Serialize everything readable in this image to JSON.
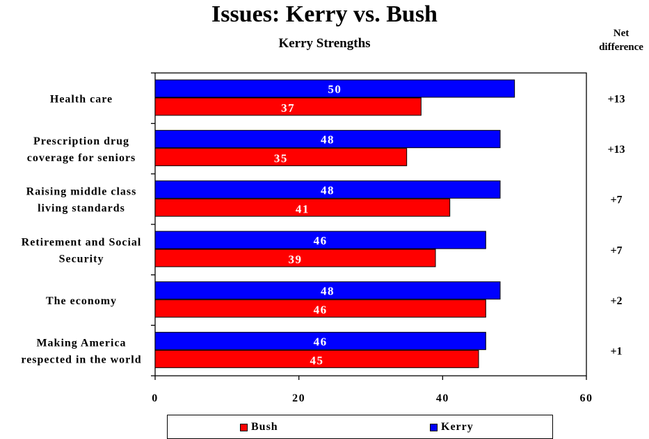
{
  "header": {
    "title": "Issues: Kerry vs. Bush",
    "subtitle": "Kerry Strengths",
    "net_header": "Net difference"
  },
  "chart_data": {
    "type": "bar",
    "orientation": "horizontal",
    "title": "Issues: Kerry vs. Bush",
    "subtitle": "Kerry Strengths",
    "categories": [
      [
        "Health care"
      ],
      [
        "Prescription drug",
        "coverage for seniors"
      ],
      [
        "Raising middle class",
        "living standards"
      ],
      [
        "Retirement and Social",
        "Security"
      ],
      [
        "The economy"
      ],
      [
        "Making America",
        "respected in the world"
      ]
    ],
    "series": [
      {
        "name": "Kerry",
        "color": "#0000ff",
        "values": [
          50,
          48,
          48,
          46,
          48,
          46
        ]
      },
      {
        "name": "Bush",
        "color": "#ff0000",
        "values": [
          37,
          35,
          41,
          39,
          46,
          45
        ]
      }
    ],
    "net_difference": [
      "+13",
      "+13",
      "+7",
      "+7",
      "+2",
      "+1"
    ],
    "xlim": [
      0,
      60
    ],
    "xticks": [
      0,
      20,
      40,
      60
    ],
    "grid": false,
    "legend": {
      "position": "bottom",
      "order": [
        "Bush",
        "Kerry"
      ]
    }
  }
}
